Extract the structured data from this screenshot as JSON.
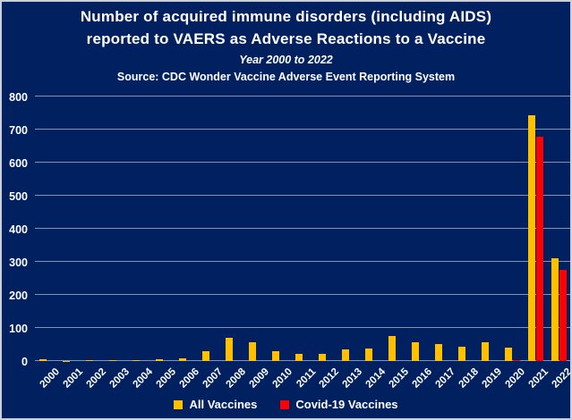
{
  "header": {
    "title_line1": "Number of acquired immune disorders (including AIDS)",
    "title_line2": "reported to VAERS as Adverse Reactions to a Vaccine",
    "subtitle": "Year 2000 to 2022",
    "source": "Source: CDC Wonder Vaccine Adverse Event Reporting System"
  },
  "colors": {
    "background": "#002060",
    "all_vaccines": "#FFC000",
    "covid_vaccines": "#FF0000",
    "gridline": "#8094B6",
    "text": "#FFFFFF"
  },
  "chart_data": {
    "type": "bar",
    "categories": [
      "2000",
      "2001",
      "2002",
      "2003",
      "2004",
      "2005",
      "2006",
      "2007",
      "2008",
      "2009",
      "2010",
      "2011",
      "2012",
      "2013",
      "2014",
      "2015",
      "2016",
      "2017",
      "2018",
      "2019",
      "2020",
      "2021",
      "2022"
    ],
    "series": [
      {
        "name": "All Vaccines",
        "color_key": "all_vaccines",
        "values": [
          5,
          1,
          3,
          3,
          3,
          6,
          9,
          30,
          70,
          57,
          30,
          22,
          22,
          35,
          38,
          77,
          58,
          51,
          44,
          58,
          41,
          744,
          310
        ]
      },
      {
        "name": "Covid-19 Vaccines",
        "color_key": "covid_vaccines",
        "values": [
          0,
          0,
          0,
          0,
          0,
          0,
          0,
          0,
          0,
          0,
          0,
          0,
          0,
          0,
          0,
          0,
          0,
          0,
          0,
          0,
          4,
          678,
          277
        ]
      }
    ],
    "title": "Number of acquired immune disorders (including AIDS) reported to VAERS as Adverse Reactions to a Vaccine",
    "xlabel": "",
    "ylabel": "",
    "ylim": [
      0,
      800
    ],
    "ytick_step": 100,
    "grid": true,
    "legend_position": "bottom"
  }
}
